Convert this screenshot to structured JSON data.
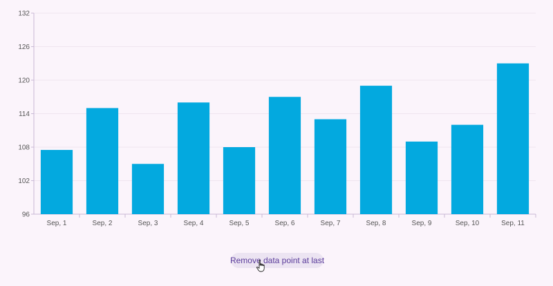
{
  "colors": {
    "background": "#fbf4fb",
    "bar": "#03a9df",
    "axis": "#c8b9d6",
    "grid": "#efe4ef",
    "button_bg": "#ece4f2",
    "button_text": "#5a3b9a"
  },
  "controls": {
    "remove_label": "Remove data point at last"
  },
  "icons": {
    "cursor": "hand-pointer-icon"
  },
  "chart_data": {
    "type": "bar",
    "title": "",
    "xlabel": "",
    "ylabel": "",
    "categories": [
      "Sep, 1",
      "Sep, 2",
      "Sep, 3",
      "Sep, 4",
      "Sep, 5",
      "Sep, 6",
      "Sep, 7",
      "Sep, 8",
      "Sep, 9",
      "Sep, 10",
      "Sep, 11"
    ],
    "values": [
      107.5,
      115,
      105,
      116,
      108,
      117,
      113,
      119,
      109,
      112,
      123
    ],
    "ylim": [
      96,
      132
    ],
    "yticks": [
      "96",
      "102",
      "108",
      "114",
      "120",
      "126",
      "132"
    ],
    "grid": true,
    "legend": "none"
  }
}
